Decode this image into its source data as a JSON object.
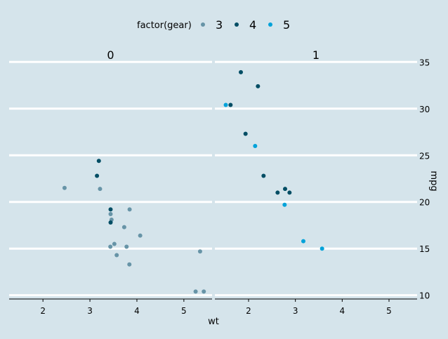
{
  "colors": {
    "background": "#d5e4eb",
    "gridline": "#ffffff",
    "axis": "#000000",
    "gear_3": "#6794a7",
    "gear_4": "#014d64",
    "gear_5": "#01a2d9"
  },
  "chart_data": {
    "type": "scatter",
    "title": "",
    "xlabel": "wt",
    "ylabel": "mpg",
    "legend": {
      "title": "factor(gear)",
      "placement": "top",
      "entries": [
        "3",
        "4",
        "5"
      ]
    },
    "facets": [
      "0",
      "1"
    ],
    "xlim": [
      1.28,
      5.6
    ],
    "ylim": [
      9.6,
      35.7
    ],
    "x_ticks": [
      2,
      3,
      4,
      5
    ],
    "y_ticks": [
      10,
      15,
      20,
      25,
      30,
      35
    ],
    "grid": {
      "horizontal": true,
      "vertical": false
    },
    "y_axis_position": "right",
    "series": [
      {
        "name": "3",
        "panels": [
          {
            "facet": "0",
            "points": [
              [
                2.46,
                21.5
              ],
              [
                3.215,
                21.4
              ],
              [
                3.44,
                18.7
              ],
              [
                3.46,
                18.1
              ],
              [
                3.57,
                14.3
              ],
              [
                4.07,
                16.4
              ],
              [
                3.73,
                17.3
              ],
              [
                3.78,
                15.2
              ],
              [
                5.25,
                10.4
              ],
              [
                5.424,
                10.4
              ],
              [
                5.345,
                14.7
              ],
              [
                3.52,
                15.5
              ],
              [
                3.435,
                15.2
              ],
              [
                3.84,
                13.3
              ],
              [
                3.845,
                19.2
              ]
            ]
          },
          {
            "facet": "1",
            "points": []
          }
        ]
      },
      {
        "name": "4",
        "panels": [
          {
            "facet": "0",
            "points": [
              [
                3.19,
                24.4
              ],
              [
                3.15,
                22.8
              ],
              [
                3.44,
                19.2
              ],
              [
                3.44,
                17.8
              ]
            ]
          },
          {
            "facet": "1",
            "points": [
              [
                2.62,
                21.0
              ],
              [
                2.875,
                21.0
              ],
              [
                2.32,
                22.8
              ],
              [
                2.2,
                32.4
              ],
              [
                1.615,
                30.4
              ],
              [
                1.835,
                33.9
              ],
              [
                1.935,
                27.3
              ],
              [
                2.78,
                21.4
              ]
            ]
          }
        ]
      },
      {
        "name": "5",
        "panels": [
          {
            "facet": "0",
            "points": []
          },
          {
            "facet": "1",
            "points": [
              [
                2.14,
                26.0
              ],
              [
                1.513,
                30.4
              ],
              [
                3.17,
                15.8
              ],
              [
                2.77,
                19.7
              ],
              [
                3.57,
                15.0
              ]
            ]
          }
        ]
      }
    ]
  }
}
